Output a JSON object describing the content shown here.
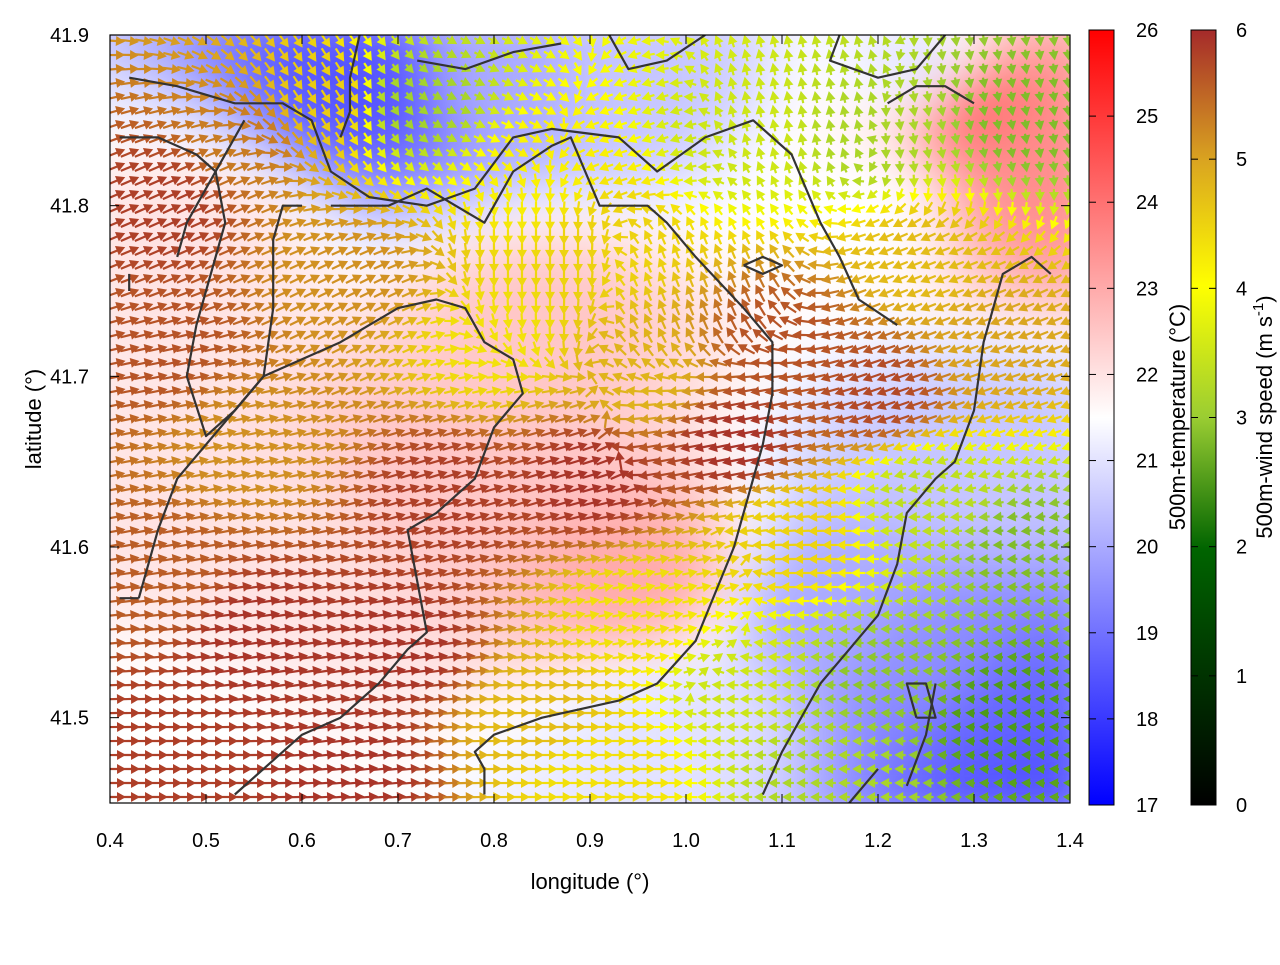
{
  "chart_data": {
    "type": "heatmap",
    "title": "",
    "xlabel": "longitude (°)",
    "ylabel": "latitude (°)",
    "xlim": [
      0.4,
      1.4
    ],
    "ylim": [
      41.45,
      41.9
    ],
    "xticks": [
      0.4,
      0.5,
      0.6,
      0.7,
      0.8,
      0.9,
      1.0,
      1.1,
      1.2,
      1.3,
      1.4
    ],
    "xtick_labels": [
      "0.4",
      "0.5",
      "0.6",
      "0.7",
      "0.8",
      "0.9",
      "1.0",
      "1.1",
      "1.2",
      "1.3",
      "1.4"
    ],
    "yticks": [
      41.5,
      41.6,
      41.7,
      41.8,
      41.9
    ],
    "ytick_labels": [
      "41.5",
      "41.6",
      "41.7",
      "41.8",
      "41.9"
    ],
    "grid": false,
    "temperature_colorbar": {
      "label": "500m-temperature (°C)",
      "range": [
        17,
        26
      ],
      "ticks": [
        17,
        18,
        19,
        20,
        21,
        22,
        23,
        24,
        25,
        26
      ],
      "tick_labels": [
        "17",
        "18",
        "19",
        "20",
        "21",
        "22",
        "23",
        "24",
        "25",
        "26"
      ],
      "colors": [
        "#0000ff",
        "#ffffff",
        "#ff0000"
      ]
    },
    "wind_colorbar": {
      "label": "500m-wind speed (m s",
      "label_superscript": "-1",
      "label_suffix": ")",
      "range": [
        0,
        6
      ],
      "ticks": [
        0,
        1,
        2,
        3,
        4,
        5,
        6
      ],
      "tick_labels": [
        "0",
        "1",
        "2",
        "3",
        "4",
        "5",
        "6"
      ],
      "colors": [
        "#000000",
        "#006400",
        "#9acd32",
        "#ffff00",
        "#daa520",
        "#a52a2a"
      ]
    },
    "temperature_regions": [
      {
        "lon": 0.67,
        "lat": 41.87,
        "temp": 18.5
      },
      {
        "lon": 0.8,
        "lat": 41.88,
        "temp": 20.0
      },
      {
        "lon": 0.95,
        "lat": 41.88,
        "temp": 20.5
      },
      {
        "lon": 1.25,
        "lat": 41.88,
        "temp": 21.0
      },
      {
        "lon": 1.3,
        "lat": 41.86,
        "temp": 24.0
      },
      {
        "lon": 1.37,
        "lat": 41.82,
        "temp": 23.5
      },
      {
        "lon": 1.18,
        "lat": 41.8,
        "temp": 21.5
      },
      {
        "lon": 0.5,
        "lat": 41.78,
        "temp": 22.0
      },
      {
        "lon": 0.85,
        "lat": 41.73,
        "temp": 22.5
      },
      {
        "lon": 0.75,
        "lat": 41.65,
        "temp": 22.5
      },
      {
        "lon": 0.55,
        "lat": 41.6,
        "temp": 22.0
      },
      {
        "lon": 0.95,
        "lat": 41.58,
        "temp": 23.0
      },
      {
        "lon": 1.0,
        "lat": 41.5,
        "temp": 21.0
      },
      {
        "lon": 1.15,
        "lat": 41.56,
        "temp": 20.0
      },
      {
        "lon": 1.25,
        "lat": 41.53,
        "temp": 19.5
      },
      {
        "lon": 1.33,
        "lat": 41.5,
        "temp": 18.8
      },
      {
        "lon": 1.35,
        "lat": 41.47,
        "temp": 18.5
      },
      {
        "lon": 1.3,
        "lat": 41.65,
        "temp": 20.5
      },
      {
        "lon": 0.45,
        "lat": 41.48,
        "temp": 21.5
      }
    ],
    "wind_speed_regions": [
      {
        "lon": 0.45,
        "lat": 41.8,
        "speed": 5.8
      },
      {
        "lon": 0.55,
        "lat": 41.84,
        "speed": 5.2
      },
      {
        "lon": 0.62,
        "lat": 41.86,
        "speed": 4.3
      },
      {
        "lon": 0.72,
        "lat": 41.86,
        "speed": 2.5
      },
      {
        "lon": 0.85,
        "lat": 41.82,
        "speed": 3.8
      },
      {
        "lon": 0.92,
        "lat": 41.78,
        "speed": 4.2
      },
      {
        "lon": 1.05,
        "lat": 41.84,
        "speed": 3.0
      },
      {
        "lon": 1.2,
        "lat": 41.84,
        "speed": 2.6
      },
      {
        "lon": 1.35,
        "lat": 41.85,
        "speed": 2.2
      },
      {
        "lon": 1.25,
        "lat": 41.77,
        "speed": 4.5
      },
      {
        "lon": 1.1,
        "lat": 41.72,
        "speed": 5.6
      },
      {
        "lon": 0.95,
        "lat": 41.7,
        "speed": 4.6
      },
      {
        "lon": 0.8,
        "lat": 41.72,
        "speed": 4.0
      },
      {
        "lon": 0.65,
        "lat": 41.76,
        "speed": 5.0
      },
      {
        "lon": 0.45,
        "lat": 41.72,
        "speed": 5.6
      },
      {
        "lon": 0.55,
        "lat": 41.66,
        "speed": 5.0
      },
      {
        "lon": 0.75,
        "lat": 41.63,
        "speed": 5.8
      },
      {
        "lon": 0.9,
        "lat": 41.64,
        "speed": 5.9
      },
      {
        "lon": 1.05,
        "lat": 41.66,
        "speed": 5.9
      },
      {
        "lon": 1.2,
        "lat": 41.69,
        "speed": 5.7
      },
      {
        "lon": 1.32,
        "lat": 41.72,
        "speed": 4.8
      },
      {
        "lon": 1.1,
        "lat": 41.61,
        "speed": 4.2
      },
      {
        "lon": 1.25,
        "lat": 41.63,
        "speed": 2.8
      },
      {
        "lon": 1.35,
        "lat": 41.6,
        "speed": 2.2
      },
      {
        "lon": 0.95,
        "lat": 41.56,
        "speed": 4.0
      },
      {
        "lon": 1.05,
        "lat": 41.52,
        "speed": 3.0
      },
      {
        "lon": 1.2,
        "lat": 41.52,
        "speed": 2.3
      },
      {
        "lon": 1.33,
        "lat": 41.5,
        "speed": 1.8
      },
      {
        "lon": 0.85,
        "lat": 41.5,
        "speed": 4.5
      },
      {
        "lon": 0.7,
        "lat": 41.54,
        "speed": 5.9
      },
      {
        "lon": 0.55,
        "lat": 41.55,
        "speed": 5.9
      },
      {
        "lon": 0.45,
        "lat": 41.58,
        "speed": 5.5
      },
      {
        "lon": 0.45,
        "lat": 41.48,
        "speed": 5.8
      },
      {
        "lon": 0.65,
        "lat": 41.47,
        "speed": 5.9
      },
      {
        "lon": 0.9,
        "lat": 41.47,
        "speed": 4.0
      },
      {
        "lon": 1.15,
        "lat": 41.47,
        "speed": 2.6
      }
    ],
    "wind_direction_regions": [
      {
        "lon": 0.5,
        "lat": 41.8,
        "dir": [
          1.0,
          0.45
        ]
      },
      {
        "lon": 0.65,
        "lat": 41.86,
        "dir": [
          0.5,
          -0.8
        ]
      },
      {
        "lon": 0.8,
        "lat": 41.86,
        "dir": [
          0.9,
          -0.4
        ]
      },
      {
        "lon": 0.95,
        "lat": 41.84,
        "dir": [
          -0.9,
          -0.3
        ]
      },
      {
        "lon": 1.1,
        "lat": 41.86,
        "dir": [
          -0.2,
          1.0
        ]
      },
      {
        "lon": 1.3,
        "lat": 41.84,
        "dir": [
          0.2,
          -1.0
        ]
      },
      {
        "lon": 1.25,
        "lat": 41.75,
        "dir": [
          -1.0,
          -0.4
        ]
      },
      {
        "lon": 1.0,
        "lat": 41.76,
        "dir": [
          -0.4,
          1.0
        ]
      },
      {
        "lon": 0.85,
        "lat": 41.77,
        "dir": [
          0.0,
          -1.0
        ]
      },
      {
        "lon": 0.65,
        "lat": 41.74,
        "dir": [
          1.0,
          0.5
        ]
      },
      {
        "lon": 0.5,
        "lat": 41.68,
        "dir": [
          1.0,
          0.2
        ]
      },
      {
        "lon": 0.8,
        "lat": 41.64,
        "dir": [
          1.0,
          0.3
        ]
      },
      {
        "lon": 1.05,
        "lat": 41.66,
        "dir": [
          -1.0,
          -0.2
        ]
      },
      {
        "lon": 1.25,
        "lat": 41.69,
        "dir": [
          -1.0,
          -0.35
        ]
      },
      {
        "lon": 0.95,
        "lat": 41.58,
        "dir": [
          1.0,
          0.2
        ]
      },
      {
        "lon": 1.2,
        "lat": 41.58,
        "dir": [
          -1.0,
          0.0
        ]
      },
      {
        "lon": 1.3,
        "lat": 41.52,
        "dir": [
          -1.0,
          0.05
        ]
      },
      {
        "lon": 0.6,
        "lat": 41.52,
        "dir": [
          1.0,
          0.15
        ]
      },
      {
        "lon": 0.5,
        "lat": 41.47,
        "dir": [
          1.0,
          0.0
        ]
      },
      {
        "lon": 0.9,
        "lat": 41.48,
        "dir": [
          1.0,
          0.0
        ]
      },
      {
        "lon": 1.1,
        "lat": 41.48,
        "dir": [
          -1.0,
          0.0
        ]
      }
    ],
    "contours": [
      [
        [
          0.42,
          41.875
        ],
        [
          0.47,
          41.87
        ],
        [
          0.53,
          41.86
        ],
        [
          0.58,
          41.86
        ],
        [
          0.61,
          41.85
        ],
        [
          0.63,
          41.82
        ],
        [
          0.67,
          41.805
        ],
        [
          0.73,
          41.8
        ],
        [
          0.78,
          41.81
        ],
        [
          0.82,
          41.84
        ],
        [
          0.86,
          41.845
        ],
        [
          0.93,
          41.84
        ],
        [
          0.97,
          41.82
        ],
        [
          1.02,
          41.84
        ],
        [
          1.07,
          41.85
        ],
        [
          1.11,
          41.83
        ],
        [
          1.14,
          41.79
        ],
        [
          1.16,
          41.77
        ],
        [
          1.18,
          41.745
        ],
        [
          1.22,
          41.73
        ]
      ],
      [
        [
          0.72,
          41.885
        ],
        [
          0.77,
          41.88
        ],
        [
          0.82,
          41.89
        ],
        [
          0.87,
          41.895
        ]
      ],
      [
        [
          0.66,
          41.9
        ],
        [
          0.65,
          41.875
        ],
        [
          0.65,
          41.855
        ],
        [
          0.64,
          41.84
        ]
      ],
      [
        [
          0.92,
          41.9
        ],
        [
          0.94,
          41.88
        ],
        [
          0.98,
          41.885
        ],
        [
          1.02,
          41.9
        ]
      ],
      [
        [
          1.16,
          41.9
        ],
        [
          1.15,
          41.885
        ],
        [
          1.2,
          41.875
        ],
        [
          1.24,
          41.88
        ],
        [
          1.27,
          41.9
        ]
      ],
      [
        [
          0.47,
          41.77
        ],
        [
          0.48,
          41.79
        ],
        [
          0.54,
          41.85
        ]
      ],
      [
        [
          0.42,
          41.76
        ],
        [
          0.42,
          41.75
        ]
      ],
      [
        [
          0.41,
          41.84
        ],
        [
          0.45,
          41.84
        ],
        [
          0.49,
          41.83
        ],
        [
          0.51,
          41.82
        ],
        [
          0.52,
          41.79
        ],
        [
          0.51,
          41.77
        ],
        [
          0.49,
          41.73
        ],
        [
          0.48,
          41.7
        ],
        [
          0.5,
          41.665
        ],
        [
          0.53,
          41.68
        ],
        [
          0.56,
          41.7
        ],
        [
          0.57,
          41.74
        ],
        [
          0.57,
          41.78
        ],
        [
          0.58,
          41.8
        ],
        [
          0.6,
          41.8
        ]
      ],
      [
        [
          0.43,
          41.57
        ],
        [
          0.45,
          41.61
        ],
        [
          0.47,
          41.64
        ],
        [
          0.5,
          41.66
        ],
        [
          0.56,
          41.7
        ],
        [
          0.6,
          41.71
        ],
        [
          0.64,
          41.72
        ],
        [
          0.67,
          41.73
        ],
        [
          0.7,
          41.74
        ],
        [
          0.74,
          41.745
        ],
        [
          0.77,
          41.74
        ],
        [
          0.79,
          41.72
        ],
        [
          0.82,
          41.71
        ],
        [
          0.83,
          41.69
        ],
        [
          0.8,
          41.67
        ],
        [
          0.78,
          41.64
        ],
        [
          0.74,
          41.62
        ],
        [
          0.71,
          41.61
        ],
        [
          0.72,
          41.58
        ],
        [
          0.73,
          41.55
        ],
        [
          0.71,
          41.54
        ],
        [
          0.68,
          41.52
        ],
        [
          0.64,
          41.5
        ],
        [
          0.6,
          41.49
        ],
        [
          0.57,
          41.475
        ],
        [
          0.53,
          41.455
        ]
      ],
      [
        [
          0.41,
          41.57
        ],
        [
          0.43,
          41.57
        ]
      ],
      [
        [
          0.79,
          41.455
        ],
        [
          0.79,
          41.47
        ],
        [
          0.78,
          41.48
        ],
        [
          0.8,
          41.49
        ],
        [
          0.85,
          41.5
        ],
        [
          0.93,
          41.51
        ],
        [
          0.97,
          41.52
        ],
        [
          1.01,
          41.545
        ],
        [
          1.05,
          41.6
        ],
        [
          1.08,
          41.66
        ],
        [
          1.09,
          41.69
        ],
        [
          1.09,
          41.72
        ],
        [
          1.06,
          41.74
        ],
        [
          1.01,
          41.77
        ],
        [
          0.98,
          41.79
        ],
        [
          0.96,
          41.8
        ],
        [
          0.91,
          41.8
        ],
        [
          0.88,
          41.84
        ],
        [
          0.86,
          41.835
        ],
        [
          0.82,
          41.82
        ],
        [
          0.79,
          41.79
        ],
        [
          0.76,
          41.8
        ],
        [
          0.73,
          41.81
        ],
        [
          0.69,
          41.8
        ],
        [
          0.63,
          41.8
        ]
      ],
      [
        [
          1.08,
          41.455
        ],
        [
          1.1,
          41.48
        ],
        [
          1.12,
          41.5
        ],
        [
          1.14,
          41.52
        ],
        [
          1.17,
          41.54
        ],
        [
          1.2,
          41.56
        ],
        [
          1.22,
          41.59
        ],
        [
          1.23,
          41.62
        ],
        [
          1.26,
          41.64
        ],
        [
          1.28,
          41.65
        ],
        [
          1.3,
          41.68
        ],
        [
          1.31,
          41.72
        ],
        [
          1.33,
          41.76
        ],
        [
          1.36,
          41.77
        ],
        [
          1.38,
          41.76
        ]
      ],
      [
        [
          1.21,
          41.86
        ],
        [
          1.24,
          41.87
        ],
        [
          1.27,
          41.87
        ],
        [
          1.3,
          41.86
        ]
      ],
      [
        [
          1.23,
          41.46
        ],
        [
          1.25,
          41.49
        ],
        [
          1.26,
          41.52
        ]
      ],
      [
        [
          1.17,
          41.45
        ],
        [
          1.2,
          41.47
        ]
      ],
      [
        [
          1.24,
          41.5
        ],
        [
          1.26,
          41.5
        ],
        [
          1.25,
          41.52
        ],
        [
          1.23,
          41.52
        ],
        [
          1.24,
          41.5
        ]
      ],
      [
        [
          1.06,
          41.765
        ],
        [
          1.08,
          41.77
        ],
        [
          1.1,
          41.765
        ],
        [
          1.08,
          41.76
        ],
        [
          1.06,
          41.765
        ]
      ]
    ]
  }
}
